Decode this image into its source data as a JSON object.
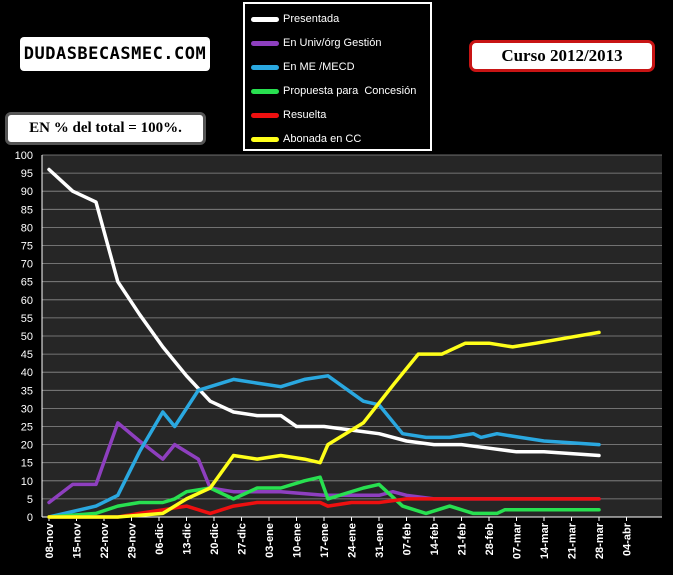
{
  "brand": "DUDASBECASMEC.COM",
  "course_label": "Curso 2012/2013",
  "note": "EN % del total = 100%.",
  "chart_data": {
    "type": "line",
    "x": [
      "08-nov",
      "15-nov",
      "22-nov",
      "29-nov",
      "06-dic",
      "13-dic",
      "20-dic",
      "27-dic",
      "03-ene",
      "10-ene",
      "17-ene",
      "24-ene",
      "31-ene",
      "07-feb",
      "14-feb",
      "21-feb",
      "28-feb",
      "07-mar",
      "14-mar",
      "21-mar",
      "28-mar",
      "04-abr"
    ],
    "ylim": [
      0,
      100
    ],
    "ytick_step": 5,
    "grid": true,
    "legend_position": "top-center",
    "series": [
      {
        "name": "Presentada",
        "color": "#ffffff",
        "points": [
          [
            0,
            96
          ],
          [
            0.86,
            90
          ],
          [
            1.71,
            87
          ],
          [
            2.5,
            65
          ],
          [
            3.29,
            56
          ],
          [
            4.14,
            47
          ],
          [
            5,
            39
          ],
          [
            5.86,
            32
          ],
          [
            6.71,
            29
          ],
          [
            7.57,
            28
          ],
          [
            8.43,
            28
          ],
          [
            9,
            25
          ],
          [
            10,
            25
          ],
          [
            11,
            24
          ],
          [
            12,
            23
          ],
          [
            13,
            21
          ],
          [
            14,
            20
          ],
          [
            15,
            20
          ],
          [
            16,
            19
          ],
          [
            17,
            18
          ],
          [
            18,
            18
          ],
          [
            19,
            17.5
          ],
          [
            20,
            17
          ]
        ]
      },
      {
        "name": "En Univ/órg Gestión",
        "color": "#8e3fbf",
        "points": [
          [
            0,
            4
          ],
          [
            0.86,
            9
          ],
          [
            1.71,
            9
          ],
          [
            2.5,
            26
          ],
          [
            3.29,
            21
          ],
          [
            4.14,
            16
          ],
          [
            4.57,
            20
          ],
          [
            5.43,
            16
          ],
          [
            5.86,
            8
          ],
          [
            6.71,
            7
          ],
          [
            7.57,
            7
          ],
          [
            8.43,
            7
          ],
          [
            10,
            6
          ],
          [
            11,
            6
          ],
          [
            12,
            6
          ],
          [
            12.5,
            7
          ],
          [
            13,
            6
          ],
          [
            14,
            5
          ],
          [
            15,
            5
          ],
          [
            16,
            5
          ],
          [
            17,
            5
          ],
          [
            18,
            5
          ],
          [
            19,
            5
          ],
          [
            20,
            5
          ]
        ]
      },
      {
        "name": "En ME /MECD",
        "color": "#2aa8e0",
        "points": [
          [
            0,
            0
          ],
          [
            1.71,
            3
          ],
          [
            2.5,
            6
          ],
          [
            3.29,
            18
          ],
          [
            4.14,
            29
          ],
          [
            4.57,
            25
          ],
          [
            5.43,
            35
          ],
          [
            6.71,
            38
          ],
          [
            7.57,
            37
          ],
          [
            8.43,
            36
          ],
          [
            9.29,
            38
          ],
          [
            10.14,
            39
          ],
          [
            11.43,
            32
          ],
          [
            12,
            31
          ],
          [
            12.86,
            23
          ],
          [
            13.71,
            22
          ],
          [
            14.57,
            22
          ],
          [
            15.43,
            23
          ],
          [
            15.71,
            22
          ],
          [
            16.29,
            23
          ],
          [
            17.14,
            22
          ],
          [
            18,
            21
          ],
          [
            20,
            20
          ]
        ]
      },
      {
        "name": "Propuesta para  Concesión",
        "color": "#28e050",
        "points": [
          [
            0,
            0
          ],
          [
            1.71,
            1
          ],
          [
            2.5,
            3
          ],
          [
            3.29,
            4
          ],
          [
            4.14,
            4
          ],
          [
            4.57,
            5
          ],
          [
            5,
            7
          ],
          [
            5.86,
            8
          ],
          [
            6.71,
            5
          ],
          [
            7.57,
            8
          ],
          [
            8.43,
            8
          ],
          [
            9.29,
            10
          ],
          [
            9.86,
            11
          ],
          [
            10.14,
            5
          ],
          [
            11.43,
            8
          ],
          [
            12,
            9
          ],
          [
            12.86,
            3
          ],
          [
            13.71,
            1
          ],
          [
            14.57,
            3
          ],
          [
            15.43,
            1
          ],
          [
            16.29,
            1
          ],
          [
            16.57,
            2
          ],
          [
            17.14,
            2
          ],
          [
            18,
            2
          ],
          [
            20,
            2
          ]
        ]
      },
      {
        "name": "Resuelta",
        "color": "#ee1010",
        "points": [
          [
            0,
            0
          ],
          [
            1.71,
            0
          ],
          [
            2.5,
            0
          ],
          [
            3.29,
            1
          ],
          [
            4.14,
            2
          ],
          [
            5,
            3
          ],
          [
            5.86,
            1
          ],
          [
            6.71,
            3
          ],
          [
            7.57,
            4
          ],
          [
            8.43,
            4
          ],
          [
            9.29,
            4
          ],
          [
            9.86,
            4
          ],
          [
            10.14,
            3
          ],
          [
            11,
            4
          ],
          [
            12,
            4
          ],
          [
            13,
            5
          ],
          [
            14,
            5
          ],
          [
            15,
            5
          ],
          [
            16,
            5
          ],
          [
            17,
            5
          ],
          [
            18,
            5
          ],
          [
            19,
            5
          ],
          [
            20,
            5
          ]
        ]
      },
      {
        "name": "Abonada en CC",
        "color": "#ffff1a",
        "points": [
          [
            0,
            0
          ],
          [
            1.71,
            0
          ],
          [
            2.5,
            0
          ],
          [
            3.29,
            0.5
          ],
          [
            4.14,
            1
          ],
          [
            5,
            5
          ],
          [
            5.86,
            8
          ],
          [
            6.71,
            17
          ],
          [
            7.57,
            16
          ],
          [
            8.43,
            17
          ],
          [
            9.29,
            16
          ],
          [
            9.86,
            15
          ],
          [
            10.14,
            20
          ],
          [
            11.43,
            26
          ],
          [
            12.57,
            37
          ],
          [
            13.43,
            45
          ],
          [
            14.29,
            45
          ],
          [
            15.14,
            48
          ],
          [
            16,
            48
          ],
          [
            16.86,
            47
          ],
          [
            17.71,
            48
          ],
          [
            20,
            51
          ]
        ]
      }
    ]
  }
}
